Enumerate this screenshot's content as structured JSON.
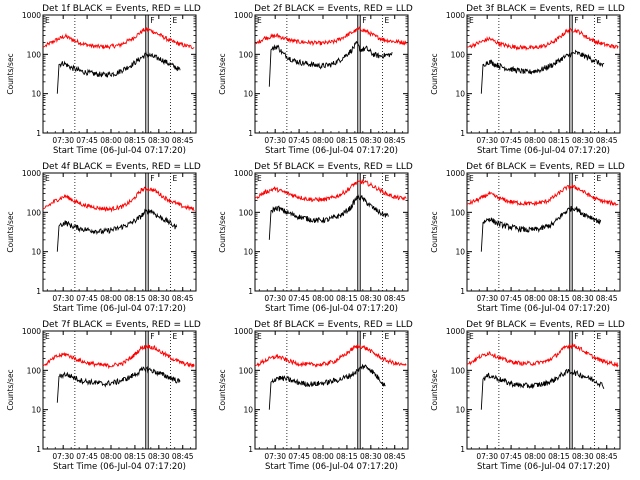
{
  "chart_data": {
    "type": "line",
    "ylabel": "Counts/sec",
    "xlabel": "Start Time (06-Jul-04 07:17:20)",
    "yscale": "log",
    "ylim": [
      1,
      1000
    ],
    "yticks": [
      "1",
      "10",
      "100",
      "1000"
    ],
    "xlim_min_after_start": [
      0,
      96
    ],
    "xticks": [
      "07:30",
      "07:45",
      "08:00",
      "08:15",
      "08:30",
      "08:45"
    ],
    "xtick_min_after_start": [
      12.67,
      27.67,
      42.67,
      57.67,
      72.67,
      87.67
    ],
    "dotted_vlines_min_after_start": [
      20,
      80
    ],
    "solid_vlines_min_after_start": [
      64.5,
      66
    ],
    "marker_labels": [
      {
        "text": "E",
        "at_min_after_start": 0
      },
      {
        "text": "F",
        "at_min_after_start": 66
      },
      {
        "text": "E",
        "at_min_after_start": 80
      }
    ],
    "series_styles": [
      {
        "legend_word": "RED",
        "color": "#ff0000"
      },
      {
        "legend_word": "BLACK",
        "color": "#000000"
      }
    ],
    "panels": [
      {
        "title": "Det 1f BLACK = Events, RED = LLD",
        "red": [
          [
            0,
            150
          ],
          [
            8,
            230
          ],
          [
            14,
            290
          ],
          [
            20,
            220
          ],
          [
            26,
            180
          ],
          [
            32,
            160
          ],
          [
            40,
            155
          ],
          [
            48,
            170
          ],
          [
            56,
            250
          ],
          [
            63,
            410
          ],
          [
            65,
            430
          ],
          [
            68,
            400
          ],
          [
            74,
            300
          ],
          [
            80,
            220
          ],
          [
            88,
            170
          ],
          [
            95,
            150
          ]
        ],
        "black": [
          [
            9,
            10
          ],
          [
            10,
            55
          ],
          [
            13,
            60
          ],
          [
            18,
            45
          ],
          [
            24,
            37
          ],
          [
            30,
            33
          ],
          [
            38,
            30
          ],
          [
            46,
            33
          ],
          [
            56,
            55
          ],
          [
            63,
            90
          ],
          [
            65,
            100
          ],
          [
            68,
            90
          ],
          [
            74,
            75
          ],
          [
            80,
            55
          ],
          [
            86,
            40
          ]
        ]
      },
      {
        "title": "Det 2f BLACK = Events, RED = LLD",
        "red": [
          [
            0,
            180
          ],
          [
            6,
            260
          ],
          [
            14,
            300
          ],
          [
            20,
            240
          ],
          [
            26,
            210
          ],
          [
            34,
            200
          ],
          [
            42,
            190
          ],
          [
            50,
            210
          ],
          [
            56,
            280
          ],
          [
            62,
            380
          ],
          [
            66,
            450
          ],
          [
            70,
            380
          ],
          [
            76,
            280
          ],
          [
            82,
            230
          ],
          [
            88,
            210
          ],
          [
            95,
            200
          ]
        ],
        "black": [
          [
            9,
            15
          ],
          [
            10,
            130
          ],
          [
            14,
            160
          ],
          [
            18,
            100
          ],
          [
            24,
            70
          ],
          [
            30,
            60
          ],
          [
            36,
            55
          ],
          [
            42,
            50
          ],
          [
            48,
            55
          ],
          [
            54,
            75
          ],
          [
            60,
            120
          ],
          [
            64,
            190
          ],
          [
            66,
            130
          ],
          [
            70,
            140
          ],
          [
            74,
            100
          ],
          [
            78,
            90
          ],
          [
            86,
            100
          ]
        ]
      },
      {
        "title": "Det 3f BLACK = Events, RED = LLD",
        "red": [
          [
            0,
            150
          ],
          [
            8,
            200
          ],
          [
            14,
            250
          ],
          [
            20,
            190
          ],
          [
            26,
            160
          ],
          [
            34,
            150
          ],
          [
            42,
            145
          ],
          [
            50,
            170
          ],
          [
            56,
            230
          ],
          [
            63,
            400
          ],
          [
            66,
            420
          ],
          [
            70,
            380
          ],
          [
            76,
            260
          ],
          [
            82,
            200
          ],
          [
            88,
            170
          ],
          [
            95,
            150
          ]
        ],
        "black": [
          [
            9,
            10
          ],
          [
            10,
            55
          ],
          [
            14,
            65
          ],
          [
            18,
            55
          ],
          [
            24,
            45
          ],
          [
            30,
            40
          ],
          [
            38,
            35
          ],
          [
            46,
            40
          ],
          [
            54,
            55
          ],
          [
            60,
            80
          ],
          [
            64,
            95
          ],
          [
            68,
            110
          ],
          [
            74,
            90
          ],
          [
            80,
            70
          ],
          [
            86,
            50
          ]
        ]
      },
      {
        "title": "Det 4f BLACK = Events, RED = LLD",
        "red": [
          [
            0,
            120
          ],
          [
            8,
            200
          ],
          [
            14,
            260
          ],
          [
            20,
            190
          ],
          [
            26,
            150
          ],
          [
            34,
            130
          ],
          [
            42,
            120
          ],
          [
            50,
            140
          ],
          [
            56,
            200
          ],
          [
            62,
            380
          ],
          [
            66,
            400
          ],
          [
            70,
            360
          ],
          [
            76,
            240
          ],
          [
            82,
            180
          ],
          [
            88,
            140
          ],
          [
            95,
            120
          ]
        ],
        "black": [
          [
            9,
            10
          ],
          [
            10,
            45
          ],
          [
            14,
            55
          ],
          [
            18,
            45
          ],
          [
            24,
            38
          ],
          [
            30,
            35
          ],
          [
            38,
            32
          ],
          [
            46,
            38
          ],
          [
            54,
            50
          ],
          [
            60,
            70
          ],
          [
            64,
            100
          ],
          [
            68,
            110
          ],
          [
            72,
            80
          ],
          [
            78,
            60
          ],
          [
            84,
            40
          ]
        ]
      },
      {
        "title": "Det 5f BLACK = Events, RED = LLD",
        "red": [
          [
            0,
            230
          ],
          [
            6,
            320
          ],
          [
            12,
            400
          ],
          [
            18,
            330
          ],
          [
            24,
            270
          ],
          [
            30,
            230
          ],
          [
            36,
            210
          ],
          [
            44,
            210
          ],
          [
            52,
            260
          ],
          [
            58,
            360
          ],
          [
            62,
            520
          ],
          [
            66,
            600
          ],
          [
            70,
            560
          ],
          [
            76,
            420
          ],
          [
            82,
            300
          ],
          [
            88,
            240
          ],
          [
            95,
            220
          ]
        ],
        "black": [
          [
            9,
            20
          ],
          [
            10,
            110
          ],
          [
            14,
            130
          ],
          [
            20,
            100
          ],
          [
            26,
            80
          ],
          [
            32,
            70
          ],
          [
            38,
            62
          ],
          [
            46,
            65
          ],
          [
            54,
            85
          ],
          [
            60,
            130
          ],
          [
            64,
            240
          ],
          [
            67,
            230
          ],
          [
            70,
            180
          ],
          [
            74,
            130
          ],
          [
            80,
            90
          ],
          [
            84,
            80
          ]
        ]
      },
      {
        "title": "Det 6f BLACK = Events, RED = LLD",
        "red": [
          [
            0,
            160
          ],
          [
            8,
            220
          ],
          [
            14,
            300
          ],
          [
            20,
            230
          ],
          [
            26,
            190
          ],
          [
            34,
            170
          ],
          [
            42,
            165
          ],
          [
            50,
            190
          ],
          [
            56,
            270
          ],
          [
            62,
            420
          ],
          [
            66,
            450
          ],
          [
            70,
            400
          ],
          [
            76,
            280
          ],
          [
            82,
            210
          ],
          [
            88,
            180
          ],
          [
            95,
            160
          ]
        ],
        "black": [
          [
            9,
            10
          ],
          [
            10,
            55
          ],
          [
            14,
            70
          ],
          [
            18,
            55
          ],
          [
            24,
            45
          ],
          [
            30,
            40
          ],
          [
            38,
            35
          ],
          [
            46,
            38
          ],
          [
            54,
            50
          ],
          [
            60,
            90
          ],
          [
            64,
            120
          ],
          [
            68,
            130
          ],
          [
            72,
            95
          ],
          [
            78,
            75
          ],
          [
            84,
            55
          ]
        ]
      },
      {
        "title": "Det 7f BLACK = Events, RED = LLD",
        "red": [
          [
            0,
            130
          ],
          [
            8,
            220
          ],
          [
            14,
            260
          ],
          [
            20,
            200
          ],
          [
            26,
            160
          ],
          [
            34,
            140
          ],
          [
            42,
            130
          ],
          [
            50,
            150
          ],
          [
            56,
            220
          ],
          [
            62,
            380
          ],
          [
            66,
            410
          ],
          [
            70,
            370
          ],
          [
            76,
            260
          ],
          [
            82,
            190
          ],
          [
            88,
            150
          ],
          [
            95,
            130
          ]
        ],
        "black": [
          [
            9,
            15
          ],
          [
            10,
            70
          ],
          [
            14,
            80
          ],
          [
            18,
            70
          ],
          [
            24,
            55
          ],
          [
            30,
            50
          ],
          [
            38,
            45
          ],
          [
            46,
            50
          ],
          [
            54,
            65
          ],
          [
            60,
            90
          ],
          [
            64,
            110
          ],
          [
            68,
            100
          ],
          [
            74,
            80
          ],
          [
            80,
            65
          ],
          [
            86,
            50
          ]
        ]
      },
      {
        "title": "Det 8f BLACK = Events, RED = LLD",
        "red": [
          [
            0,
            130
          ],
          [
            8,
            190
          ],
          [
            14,
            230
          ],
          [
            20,
            180
          ],
          [
            26,
            150
          ],
          [
            34,
            140
          ],
          [
            42,
            140
          ],
          [
            50,
            170
          ],
          [
            56,
            240
          ],
          [
            62,
            380
          ],
          [
            66,
            410
          ],
          [
            70,
            360
          ],
          [
            76,
            250
          ],
          [
            82,
            180
          ],
          [
            88,
            150
          ],
          [
            95,
            130
          ]
        ],
        "black": [
          [
            9,
            10
          ],
          [
            10,
            50
          ],
          [
            14,
            65
          ],
          [
            20,
            60
          ],
          [
            26,
            50
          ],
          [
            32,
            45
          ],
          [
            38,
            45
          ],
          [
            46,
            50
          ],
          [
            54,
            60
          ],
          [
            60,
            75
          ],
          [
            64,
            95
          ],
          [
            68,
            130
          ],
          [
            72,
            110
          ],
          [
            78,
            60
          ],
          [
            82,
            40
          ]
        ]
      },
      {
        "title": "Det 9f BLACK = Events, RED = LLD",
        "red": [
          [
            0,
            140
          ],
          [
            8,
            220
          ],
          [
            14,
            280
          ],
          [
            20,
            210
          ],
          [
            26,
            170
          ],
          [
            34,
            150
          ],
          [
            42,
            150
          ],
          [
            50,
            170
          ],
          [
            56,
            240
          ],
          [
            62,
            400
          ],
          [
            66,
            430
          ],
          [
            70,
            380
          ],
          [
            76,
            260
          ],
          [
            82,
            190
          ],
          [
            88,
            160
          ],
          [
            95,
            140
          ]
        ],
        "black": [
          [
            9,
            10
          ],
          [
            10,
            60
          ],
          [
            14,
            75
          ],
          [
            20,
            60
          ],
          [
            26,
            48
          ],
          [
            32,
            42
          ],
          [
            40,
            40
          ],
          [
            48,
            45
          ],
          [
            54,
            55
          ],
          [
            60,
            80
          ],
          [
            64,
            95
          ],
          [
            68,
            85
          ],
          [
            74,
            70
          ],
          [
            80,
            55
          ],
          [
            86,
            40
          ]
        ]
      }
    ]
  }
}
